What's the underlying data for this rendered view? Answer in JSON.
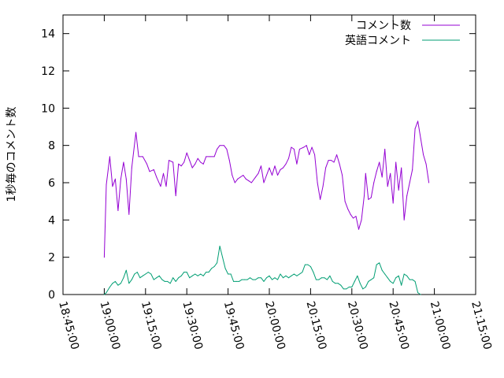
{
  "chart_data": {
    "type": "line",
    "ylabel": "1秒毎のコメント数",
    "ylim": [
      0,
      15
    ],
    "y_ticks": [
      0,
      2,
      4,
      6,
      8,
      10,
      12,
      14
    ],
    "x_ticks": [
      "18:45:00",
      "19:00:00",
      "19:15:00",
      "19:30:00",
      "19:45:00",
      "20:00:00",
      "20:15:00",
      "20:30:00",
      "20:45:00",
      "21:00:00",
      "21:15:00"
    ],
    "x_unit": "HH:MM:SS",
    "xlim": [
      "18:45:00",
      "21:15:00"
    ],
    "legend_position": "top-right",
    "series": [
      {
        "name": "コメント数",
        "color": "#9400d3",
        "points": [
          [
            "19:00:00",
            2.0
          ],
          [
            "19:00:45",
            5.9
          ],
          [
            "19:02:00",
            7.4
          ],
          [
            "19:03:00",
            5.8
          ],
          [
            "19:04:00",
            6.2
          ],
          [
            "19:05:00",
            4.5
          ],
          [
            "19:06:00",
            6.2
          ],
          [
            "19:07:00",
            7.1
          ],
          [
            "19:08:00",
            6.2
          ],
          [
            "19:09:00",
            4.3
          ],
          [
            "19:10:00",
            6.8
          ],
          [
            "19:11:30",
            8.7
          ],
          [
            "19:12:30",
            7.4
          ],
          [
            "19:14:00",
            7.4
          ],
          [
            "19:15:30",
            7.0
          ],
          [
            "19:16:30",
            6.6
          ],
          [
            "19:18:00",
            6.7
          ],
          [
            "19:19:00",
            6.3
          ],
          [
            "19:20:30",
            5.8
          ],
          [
            "19:21:30",
            6.5
          ],
          [
            "19:22:30",
            5.8
          ],
          [
            "19:23:30",
            7.2
          ],
          [
            "19:25:00",
            7.1
          ],
          [
            "19:26:00",
            5.3
          ],
          [
            "19:27:00",
            7.0
          ],
          [
            "19:28:00",
            6.9
          ],
          [
            "19:29:00",
            7.1
          ],
          [
            "19:30:00",
            7.6
          ],
          [
            "19:31:00",
            7.2
          ],
          [
            "19:32:00",
            6.8
          ],
          [
            "19:33:00",
            7.0
          ],
          [
            "19:34:00",
            7.3
          ],
          [
            "19:35:00",
            7.1
          ],
          [
            "19:36:00",
            7.0
          ],
          [
            "19:37:00",
            7.4
          ],
          [
            "19:38:30",
            7.4
          ],
          [
            "19:40:00",
            7.4
          ],
          [
            "19:41:00",
            7.8
          ],
          [
            "19:42:00",
            8.0
          ],
          [
            "19:43:30",
            8.0
          ],
          [
            "19:44:30",
            7.8
          ],
          [
            "19:45:30",
            7.2
          ],
          [
            "19:46:30",
            6.4
          ],
          [
            "19:47:30",
            6.0
          ],
          [
            "19:48:30",
            6.2
          ],
          [
            "19:49:30",
            6.3
          ],
          [
            "19:50:30",
            6.4
          ],
          [
            "19:51:30",
            6.2
          ],
          [
            "19:52:30",
            6.1
          ],
          [
            "19:53:30",
            6.0
          ],
          [
            "19:55:00",
            6.3
          ],
          [
            "19:56:00",
            6.5
          ],
          [
            "19:57:00",
            6.9
          ],
          [
            "19:58:00",
            6.0
          ],
          [
            "19:59:00",
            6.4
          ],
          [
            "20:00:00",
            6.8
          ],
          [
            "20:01:00",
            6.4
          ],
          [
            "20:02:00",
            6.9
          ],
          [
            "20:03:00",
            6.4
          ],
          [
            "20:04:00",
            6.7
          ],
          [
            "20:05:00",
            6.8
          ],
          [
            "20:06:00",
            7.0
          ],
          [
            "20:07:00",
            7.3
          ],
          [
            "20:08:00",
            7.9
          ],
          [
            "20:09:00",
            7.8
          ],
          [
            "20:10:00",
            7.0
          ],
          [
            "20:11:00",
            7.8
          ],
          [
            "20:12:30",
            7.9
          ],
          [
            "20:13:30",
            8.0
          ],
          [
            "20:14:30",
            7.5
          ],
          [
            "20:15:30",
            7.9
          ],
          [
            "20:16:30",
            7.5
          ],
          [
            "20:17:30",
            6.0
          ],
          [
            "20:18:30",
            5.1
          ],
          [
            "20:19:30",
            5.8
          ],
          [
            "20:20:30",
            6.8
          ],
          [
            "20:21:30",
            7.2
          ],
          [
            "20:22:30",
            7.2
          ],
          [
            "20:23:30",
            7.1
          ],
          [
            "20:24:30",
            7.5
          ],
          [
            "20:25:30",
            7.0
          ],
          [
            "20:26:30",
            6.4
          ],
          [
            "20:27:30",
            5.0
          ],
          [
            "20:28:30",
            4.6
          ],
          [
            "20:29:30",
            4.3
          ],
          [
            "20:30:30",
            4.1
          ],
          [
            "20:31:30",
            4.2
          ],
          [
            "20:32:30",
            3.5
          ],
          [
            "20:33:30",
            4.0
          ],
          [
            "20:34:30",
            5.3
          ],
          [
            "20:35:00",
            6.5
          ],
          [
            "20:36:00",
            5.1
          ],
          [
            "20:37:00",
            5.2
          ],
          [
            "20:38:00",
            6.0
          ],
          [
            "20:39:00",
            6.6
          ],
          [
            "20:40:00",
            7.1
          ],
          [
            "20:41:00",
            6.3
          ],
          [
            "20:42:00",
            7.8
          ],
          [
            "20:43:00",
            5.8
          ],
          [
            "20:44:00",
            6.5
          ],
          [
            "20:45:00",
            4.9
          ],
          [
            "20:46:00",
            7.1
          ],
          [
            "20:47:00",
            5.6
          ],
          [
            "20:48:00",
            6.8
          ],
          [
            "20:49:00",
            4.0
          ],
          [
            "20:50:00",
            5.3
          ],
          [
            "20:51:00",
            6.0
          ],
          [
            "20:52:00",
            6.7
          ],
          [
            "20:53:00",
            8.9
          ],
          [
            "20:54:00",
            9.3
          ],
          [
            "20:55:00",
            8.4
          ],
          [
            "20:56:00",
            7.5
          ],
          [
            "20:57:00",
            7.0
          ],
          [
            "20:58:00",
            6.0
          ]
        ]
      },
      {
        "name": "英語コメント",
        "color": "#009e73",
        "points": [
          [
            "19:00:00",
            0.0
          ],
          [
            "19:00:45",
            0.1
          ],
          [
            "19:02:00",
            0.4
          ],
          [
            "19:03:00",
            0.6
          ],
          [
            "19:04:00",
            0.7
          ],
          [
            "19:05:00",
            0.5
          ],
          [
            "19:06:00",
            0.6
          ],
          [
            "19:07:00",
            0.9
          ],
          [
            "19:08:00",
            1.3
          ],
          [
            "19:09:00",
            0.6
          ],
          [
            "19:10:00",
            0.8
          ],
          [
            "19:11:00",
            1.1
          ],
          [
            "19:12:00",
            1.2
          ],
          [
            "19:13:00",
            0.9
          ],
          [
            "19:14:00",
            1.0
          ],
          [
            "19:15:00",
            1.1
          ],
          [
            "19:16:00",
            1.2
          ],
          [
            "19:17:00",
            1.1
          ],
          [
            "19:18:00",
            0.8
          ],
          [
            "19:19:00",
            0.9
          ],
          [
            "19:20:00",
            1.0
          ],
          [
            "19:21:00",
            0.8
          ],
          [
            "19:22:00",
            0.7
          ],
          [
            "19:23:00",
            0.7
          ],
          [
            "19:24:00",
            0.6
          ],
          [
            "19:25:00",
            0.9
          ],
          [
            "19:26:00",
            0.7
          ],
          [
            "19:27:00",
            0.9
          ],
          [
            "19:28:00",
            1.0
          ],
          [
            "19:29:00",
            1.2
          ],
          [
            "19:30:00",
            1.2
          ],
          [
            "19:31:00",
            0.9
          ],
          [
            "19:32:00",
            1.0
          ],
          [
            "19:33:00",
            1.1
          ],
          [
            "19:34:00",
            1.0
          ],
          [
            "19:35:00",
            1.1
          ],
          [
            "19:36:00",
            1.0
          ],
          [
            "19:37:00",
            1.2
          ],
          [
            "19:38:00",
            1.2
          ],
          [
            "19:39:00",
            1.4
          ],
          [
            "19:40:00",
            1.5
          ],
          [
            "19:41:00",
            1.7
          ],
          [
            "19:42:00",
            2.6
          ],
          [
            "19:43:00",
            2.0
          ],
          [
            "19:44:00",
            1.4
          ],
          [
            "19:45:00",
            1.1
          ],
          [
            "19:46:00",
            1.1
          ],
          [
            "19:47:00",
            0.7
          ],
          [
            "19:48:00",
            0.7
          ],
          [
            "19:49:00",
            0.7
          ],
          [
            "19:50:00",
            0.8
          ],
          [
            "19:51:00",
            0.8
          ],
          [
            "19:52:00",
            0.8
          ],
          [
            "19:53:00",
            0.9
          ],
          [
            "19:54:00",
            0.8
          ],
          [
            "19:55:00",
            0.8
          ],
          [
            "19:56:00",
            0.9
          ],
          [
            "19:57:00",
            0.9
          ],
          [
            "19:58:00",
            0.7
          ],
          [
            "19:59:00",
            0.9
          ],
          [
            "20:00:00",
            1.0
          ],
          [
            "20:01:00",
            0.8
          ],
          [
            "20:02:00",
            0.9
          ],
          [
            "20:03:00",
            0.8
          ],
          [
            "20:04:00",
            1.1
          ],
          [
            "20:05:00",
            0.9
          ],
          [
            "20:06:00",
            1.0
          ],
          [
            "20:07:00",
            0.9
          ],
          [
            "20:08:00",
            1.0
          ],
          [
            "20:09:00",
            1.1
          ],
          [
            "20:10:00",
            1.0
          ],
          [
            "20:11:00",
            1.1
          ],
          [
            "20:12:00",
            1.2
          ],
          [
            "20:13:00",
            1.6
          ],
          [
            "20:14:00",
            1.6
          ],
          [
            "20:15:00",
            1.5
          ],
          [
            "20:16:00",
            1.2
          ],
          [
            "20:17:00",
            0.8
          ],
          [
            "20:18:00",
            0.8
          ],
          [
            "20:19:00",
            0.9
          ],
          [
            "20:20:00",
            0.9
          ],
          [
            "20:21:00",
            0.8
          ],
          [
            "20:22:00",
            1.0
          ],
          [
            "20:23:00",
            0.7
          ],
          [
            "20:24:00",
            0.6
          ],
          [
            "20:25:00",
            0.6
          ],
          [
            "20:26:00",
            0.5
          ],
          [
            "20:27:00",
            0.3
          ],
          [
            "20:28:00",
            0.3
          ],
          [
            "20:29:00",
            0.4
          ],
          [
            "20:30:00",
            0.4
          ],
          [
            "20:31:00",
            0.7
          ],
          [
            "20:32:00",
            1.0
          ],
          [
            "20:33:00",
            0.6
          ],
          [
            "20:34:00",
            0.3
          ],
          [
            "20:35:00",
            0.4
          ],
          [
            "20:36:00",
            0.7
          ],
          [
            "20:37:00",
            0.8
          ],
          [
            "20:38:00",
            0.9
          ],
          [
            "20:39:00",
            1.6
          ],
          [
            "20:40:00",
            1.7
          ],
          [
            "20:41:00",
            1.3
          ],
          [
            "20:42:00",
            1.1
          ],
          [
            "20:43:00",
            0.9
          ],
          [
            "20:44:00",
            0.7
          ],
          [
            "20:45:00",
            0.6
          ],
          [
            "20:46:00",
            0.9
          ],
          [
            "20:47:00",
            1.0
          ],
          [
            "20:48:00",
            0.5
          ],
          [
            "20:49:00",
            1.1
          ],
          [
            "20:50:00",
            1.0
          ],
          [
            "20:51:00",
            0.8
          ],
          [
            "20:52:00",
            0.8
          ],
          [
            "20:53:00",
            0.7
          ],
          [
            "20:54:00",
            0.1
          ],
          [
            "20:55:00",
            0.0
          ]
        ]
      }
    ]
  }
}
